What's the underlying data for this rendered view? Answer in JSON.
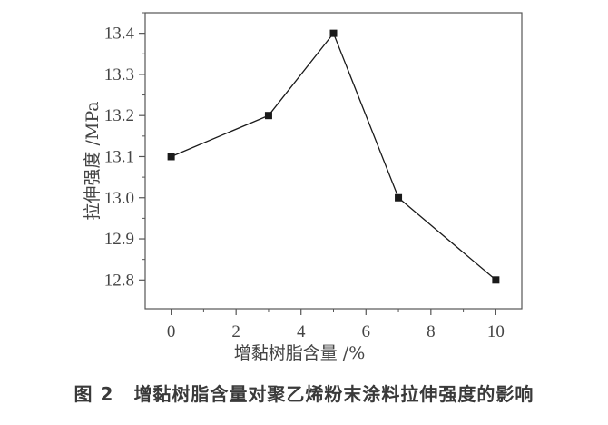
{
  "chart_data": {
    "type": "line",
    "xlabel": "增黏树脂含量 /%",
    "ylabel": "拉伸强度 /MPa",
    "x": [
      0,
      3,
      5,
      7,
      10
    ],
    "y": [
      13.1,
      13.2,
      13.4,
      13.0,
      12.8
    ],
    "xlim": [
      -0.8,
      10.8
    ],
    "ylim": [
      12.73,
      13.45
    ],
    "xticks": [
      0,
      2,
      4,
      6,
      8,
      10
    ],
    "xtick_labels": [
      "0",
      "2",
      "4",
      "6",
      "8",
      "10"
    ],
    "yticks": [
      12.8,
      12.9,
      13.0,
      13.1,
      13.2,
      13.3,
      13.4
    ],
    "ytick_labels": [
      "12.8",
      "12.9",
      "13.0",
      "13.1",
      "13.2",
      "13.3",
      "13.4"
    ],
    "marker": "square",
    "grid": false,
    "line_color": "#1a1a1a"
  },
  "caption": {
    "number": "图 2",
    "text": "增黏树脂含量对聚乙烯粉末涂料拉伸强度的影响"
  }
}
